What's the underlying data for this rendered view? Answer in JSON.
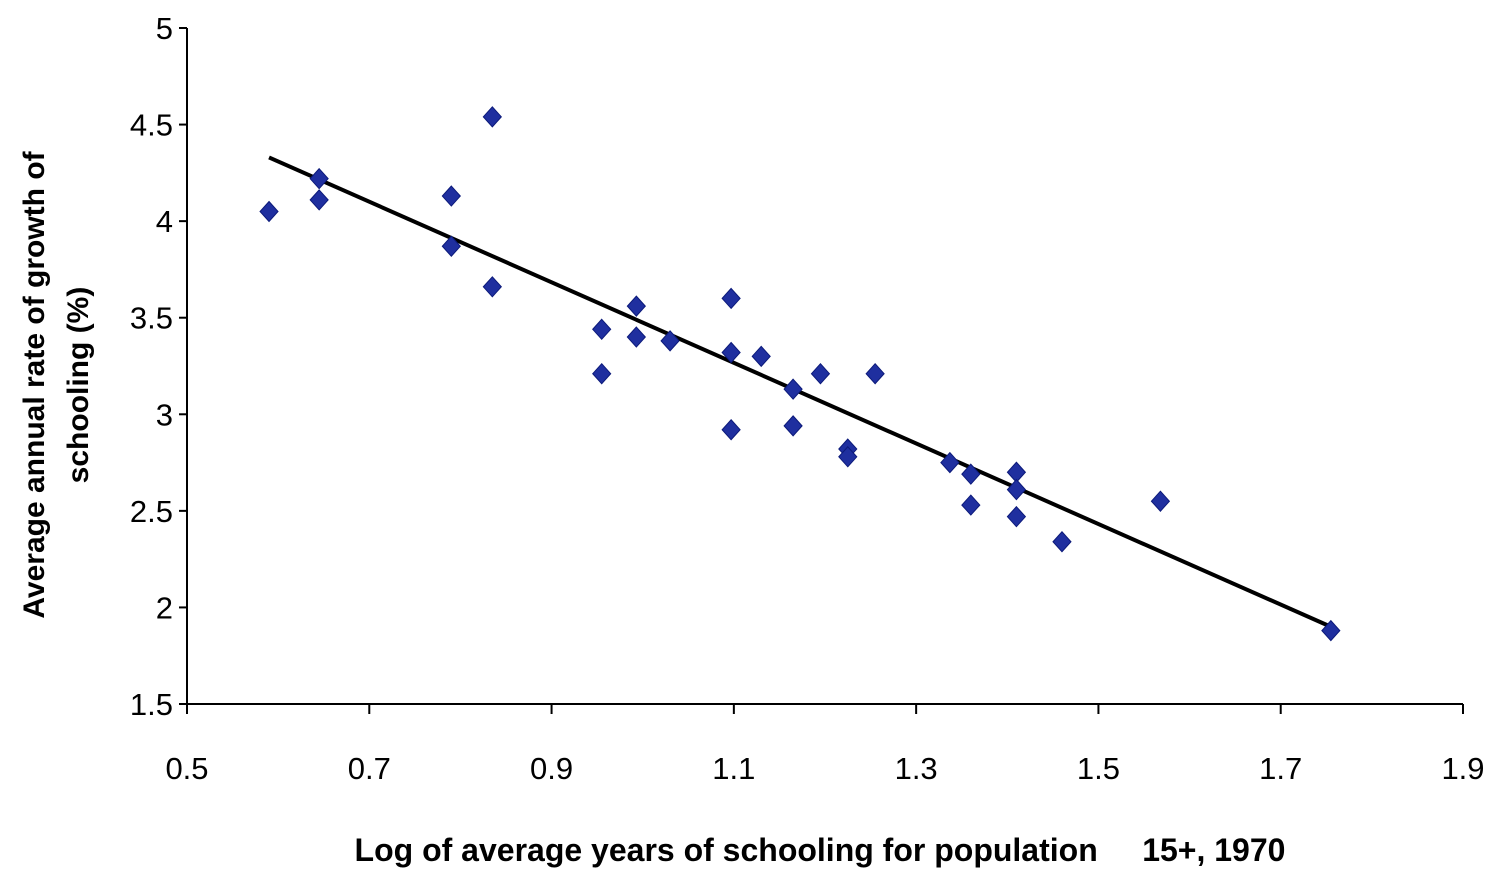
{
  "chart_data": {
    "type": "scatter",
    "title": "",
    "xlabel": "Log of average years of schooling for population     15+, 1970",
    "ylabel": "Average annual rate of growth of schooling (%)",
    "xlim": [
      0.5,
      1.9
    ],
    "ylim": [
      1.5,
      5
    ],
    "x_ticks": [
      "0.5",
      "0.7",
      "0.9",
      "1.1",
      "1.3",
      "1.5",
      "1.7",
      "1.9"
    ],
    "y_ticks": [
      "1.5",
      "2",
      "2.5",
      "3",
      "3.5",
      "4",
      "4.5",
      "5"
    ],
    "grid": false,
    "legend": "none",
    "marker": "diamond",
    "marker_color": "#1F2F9F",
    "line_color": "#000000",
    "points": [
      {
        "x": 0.59,
        "y": 4.05
      },
      {
        "x": 0.645,
        "y": 4.22
      },
      {
        "x": 0.645,
        "y": 4.11
      },
      {
        "x": 0.79,
        "y": 4.13
      },
      {
        "x": 0.79,
        "y": 3.87
      },
      {
        "x": 0.835,
        "y": 4.54
      },
      {
        "x": 0.835,
        "y": 3.66
      },
      {
        "x": 0.955,
        "y": 3.44
      },
      {
        "x": 0.955,
        "y": 3.21
      },
      {
        "x": 0.993,
        "y": 3.56
      },
      {
        "x": 0.993,
        "y": 3.4
      },
      {
        "x": 1.03,
        "y": 3.38
      },
      {
        "x": 1.097,
        "y": 3.6
      },
      {
        "x": 1.097,
        "y": 3.32
      },
      {
        "x": 1.097,
        "y": 2.92
      },
      {
        "x": 1.13,
        "y": 3.3
      },
      {
        "x": 1.165,
        "y": 3.13
      },
      {
        "x": 1.165,
        "y": 2.94
      },
      {
        "x": 1.195,
        "y": 3.21
      },
      {
        "x": 1.225,
        "y": 2.82
      },
      {
        "x": 1.225,
        "y": 2.78
      },
      {
        "x": 1.255,
        "y": 3.21
      },
      {
        "x": 1.337,
        "y": 2.75
      },
      {
        "x": 1.36,
        "y": 2.69
      },
      {
        "x": 1.36,
        "y": 2.53
      },
      {
        "x": 1.41,
        "y": 2.7
      },
      {
        "x": 1.41,
        "y": 2.61
      },
      {
        "x": 1.41,
        "y": 2.47
      },
      {
        "x": 1.46,
        "y": 2.34
      },
      {
        "x": 1.568,
        "y": 2.55
      },
      {
        "x": 1.755,
        "y": 1.88
      }
    ],
    "trendline": {
      "x": [
        0.59,
        1.755
      ],
      "y": [
        4.33,
        1.9
      ]
    }
  }
}
